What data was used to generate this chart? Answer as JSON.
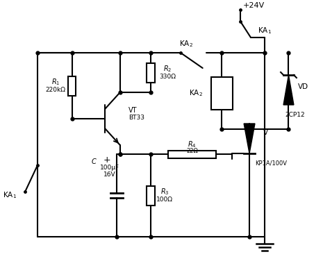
{
  "bg": "#ffffff",
  "lc": "#000000",
  "lw": 1.5,
  "figsize": [
    4.65,
    3.86
  ],
  "dpi": 100,
  "supply_label": "+24V",
  "ka1_top_label": "KA$_1$",
  "ka2_top_label": "KA$_2$",
  "r1_label": "$R_1$",
  "r1_val": "220kΩ",
  "vt_label": "VT",
  "vt_val": "BT33",
  "r2_label": "$R_2$",
  "r2_val": "330Ω",
  "ka2_coil_label": "KA$_2$",
  "vd_label": "VD",
  "vd_val": "2CP12",
  "v_label": "V",
  "v_val": "KP1A/100V",
  "r4_label": "$R_4$",
  "r4_val": "22Ω",
  "c_label": "$C$",
  "c_val": "100μF",
  "c_val2": "16V",
  "r3_label": "$R_3$",
  "r3_val": "100Ω",
  "ka1_bot_label": "KA$_1$",
  "plus_sign": "+"
}
